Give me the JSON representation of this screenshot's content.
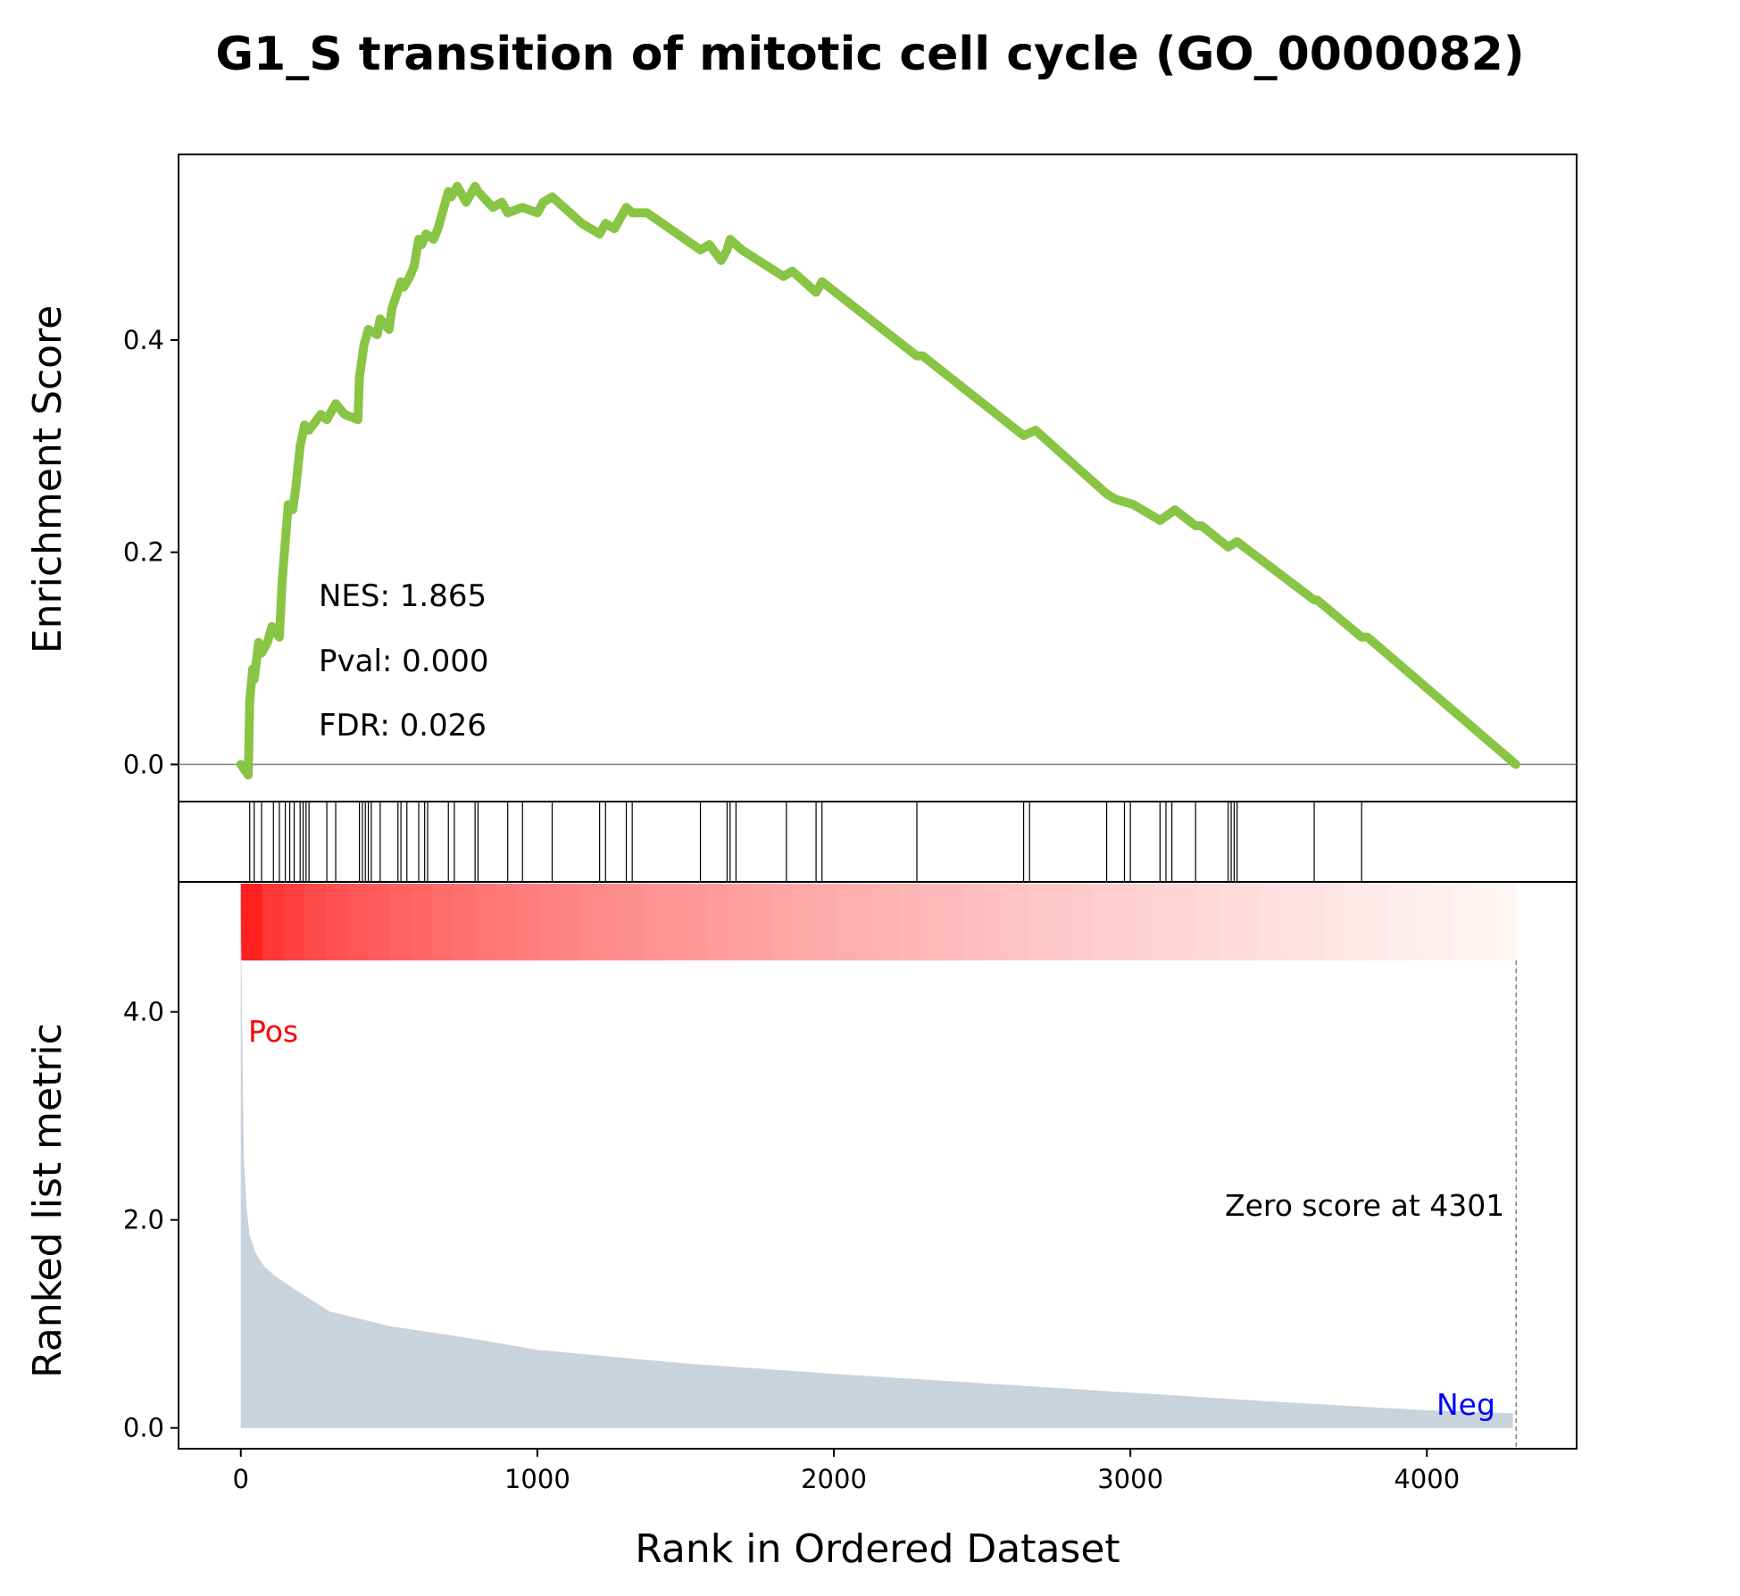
{
  "chart_data": {
    "type": "line",
    "title": "G1_S transition of mitotic cell cycle (GO_0000082)",
    "colors": {
      "es_line": "#88c544",
      "metric_fill": "#c8d3dc",
      "pos_label": "#ff0000",
      "neg_label": "#0000ff",
      "heat_start": "#ff2020",
      "heat_end": "#fff6f6"
    },
    "enrichment_panel": {
      "ylabel": "Enrichment Score",
      "ylim": [
        -0.035,
        0.575
      ],
      "yticks": [
        0.0,
        0.2,
        0.4
      ],
      "ytick_labels": [
        "0.0",
        "0.2",
        "0.4"
      ],
      "zero_line": true,
      "stats": [
        "NES: 1.865",
        "Pval: 0.000",
        "FDR: 0.026"
      ],
      "x": [
        0,
        25,
        30,
        40,
        45,
        60,
        70,
        90,
        105,
        130,
        140,
        160,
        175,
        185,
        200,
        215,
        230,
        270,
        290,
        320,
        350,
        395,
        400,
        415,
        430,
        460,
        470,
        500,
        510,
        540,
        550,
        570,
        585,
        600,
        610,
        625,
        650,
        665,
        700,
        710,
        730,
        760,
        790,
        800,
        850,
        880,
        900,
        950,
        1000,
        1020,
        1050,
        1150,
        1210,
        1230,
        1260,
        1290,
        1300,
        1320,
        1370,
        1550,
        1580,
        1620,
        1640,
        1650,
        1690,
        1830,
        1860,
        1940,
        1960,
        2280,
        2300,
        2640,
        2680,
        2920,
        2950,
        3010,
        3100,
        3150,
        3220,
        3240,
        3330,
        3360,
        3620,
        3630,
        3780,
        3800,
        4300
      ],
      "y": [
        0.0,
        -0.01,
        0.06,
        0.09,
        0.08,
        0.115,
        0.105,
        0.115,
        0.13,
        0.12,
        0.175,
        0.245,
        0.24,
        0.26,
        0.3,
        0.32,
        0.315,
        0.33,
        0.325,
        0.34,
        0.33,
        0.325,
        0.365,
        0.395,
        0.41,
        0.405,
        0.42,
        0.41,
        0.43,
        0.455,
        0.45,
        0.46,
        0.47,
        0.495,
        0.49,
        0.5,
        0.495,
        0.505,
        0.54,
        0.535,
        0.545,
        0.53,
        0.545,
        0.54,
        0.525,
        0.53,
        0.52,
        0.525,
        0.52,
        0.53,
        0.535,
        0.51,
        0.5,
        0.51,
        0.505,
        0.52,
        0.525,
        0.52,
        0.52,
        0.485,
        0.49,
        0.475,
        0.485,
        0.495,
        0.485,
        0.46,
        0.465,
        0.445,
        0.455,
        0.385,
        0.385,
        0.31,
        0.315,
        0.255,
        0.25,
        0.245,
        0.23,
        0.24,
        0.225,
        0.225,
        0.205,
        0.21,
        0.155,
        0.155,
        0.12,
        0.12,
        0.0
      ]
    },
    "hits_panel": {
      "positions": [
        30,
        45,
        70,
        110,
        130,
        150,
        165,
        180,
        200,
        210,
        220,
        230,
        290,
        320,
        400,
        410,
        420,
        430,
        440,
        470,
        530,
        540,
        560,
        600,
        620,
        630,
        700,
        720,
        790,
        800,
        900,
        950,
        1050,
        1210,
        1230,
        1300,
        1320,
        1550,
        1640,
        1650,
        1670,
        1840,
        1940,
        1960,
        2280,
        2640,
        2660,
        2920,
        2980,
        3000,
        3100,
        3120,
        3140,
        3220,
        3330,
        3340,
        3350,
        3360,
        3620,
        3780
      ]
    },
    "metric_panel": {
      "ylabel": "Ranked list metric",
      "xlabel": "Rank in Ordered Dataset",
      "ylim": [
        -0.2,
        5.25
      ],
      "yticks": [
        0.0,
        2.0,
        4.0
      ],
      "ytick_labels": [
        "0.0",
        "2.0",
        "4.0"
      ],
      "xlim": [
        -210,
        4505
      ],
      "xticks": [
        0,
        1000,
        2000,
        3000,
        4000
      ],
      "xtick_labels": [
        "0",
        "1000",
        "2000",
        "3000",
        "4000"
      ],
      "x": [
        0,
        5,
        10,
        20,
        30,
        50,
        80,
        120,
        200,
        300,
        500,
        800,
        1000,
        1500,
        2000,
        2500,
        3000,
        3500,
        4000,
        4290
      ],
      "values": [
        5.0,
        3.8,
        2.6,
        2.1,
        1.85,
        1.68,
        1.55,
        1.45,
        1.3,
        1.12,
        0.98,
        0.85,
        0.75,
        0.62,
        0.52,
        0.43,
        0.34,
        0.25,
        0.17,
        0.14
      ],
      "pos_label": "Pos",
      "neg_label": "Neg",
      "zero_score_rank": 4301,
      "zero_score_text": "Zero score at 4301"
    }
  }
}
